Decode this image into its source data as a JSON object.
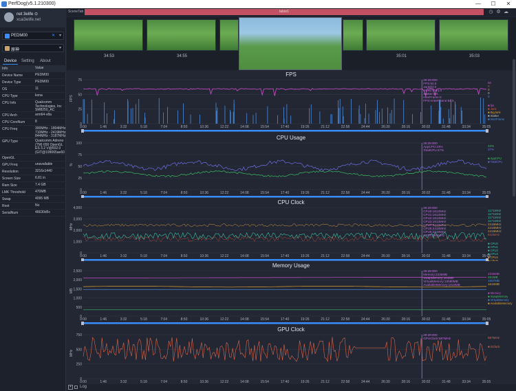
{
  "app": {
    "title": "PerfDog(v5.1.210300)",
    "min": "—",
    "max": "☐",
    "close": "✕"
  },
  "user": {
    "name": "net 3elife ⊙",
    "email": "xcai3elife.net"
  },
  "device_select": {
    "label": "PEDM00",
    "x": "✕"
  },
  "app_select": {
    "label": "原神"
  },
  "tabs": [
    "Device",
    "Setting",
    "About"
  ],
  "info": {
    "header_k": "Info",
    "header_v": "Value",
    "rows": [
      [
        "Device Name",
        "PEDM00"
      ],
      [
        "Device Type",
        "PEDM00"
      ],
      [
        "OS",
        "11"
      ],
      [
        "CPU Type",
        "kona"
      ],
      [
        "CPU Info",
        "Qualcomm Technologies, Inc SM8250_AC"
      ],
      [
        "CPU Arch",
        "arm64-v8a"
      ],
      [
        "CPU CoreNum",
        "8"
      ],
      [
        "CPU Freq",
        "300MHz - 1804MHz 710MHz - 2419MHz 844MHz - 3187MHz"
      ],
      [
        "GPU Type",
        "Qualcomm Adreno (TM) 650 OpenGL ES 3.2 V@502.0 (GIT@199065ae60"
      ],
      [
        "OpenGL",
        ""
      ],
      [
        "GPU Freq",
        "unavailable"
      ],
      [
        "Resolution",
        "3216x1440"
      ],
      [
        "Screen Size",
        "6.81 in"
      ],
      [
        "Ram Size",
        "7.4 GB"
      ],
      [
        "LMK Threshold",
        "470MB"
      ],
      [
        "Swap",
        "4095 MB"
      ],
      [
        "Root",
        "No"
      ],
      [
        "SerialNum",
        "46630d5c"
      ]
    ]
  },
  "scene": {
    "tab": "SceneTab",
    "label": "labor1"
  },
  "thumbs": [
    "34:53",
    "34:55",
    "",
    "35:01",
    "35:03"
  ],
  "x_ticks": [
    "0:00",
    "1:46",
    "3:32",
    "5:18",
    "7:04",
    "8:50",
    "10:36",
    "12:22",
    "14:08",
    "15:54",
    "17:40",
    "19:26",
    "21:12",
    "22:58",
    "24:44",
    "26:30",
    "28:16",
    "30:02",
    "31:48",
    "33:34",
    "35:05"
  ],
  "fps": {
    "title": "FPS",
    "ylabel": "FPS",
    "y_ticks": [
      "75",
      "50",
      "25",
      "0"
    ],
    "tooltip": [
      "29:29:000",
      "FPS:54.5",
      "Jank(k):0",
      "Jank(/10m):0",
      "Stutter:0%",
      "InterFrame:0",
      "FPS>InterFrame:54.5"
    ],
    "legend": [
      {
        "name": "fps",
        "color": "#d04fcf",
        "value": "60"
      },
      {
        "name": "Jank",
        "color": "#d8553a",
        "value": "0"
      },
      {
        "name": "BigJank",
        "color": "#e0a030",
        "value": "0"
      },
      {
        "name": "Stutter",
        "color": "#c0c0c0",
        "value": "0"
      },
      {
        "name": "InterFrame",
        "color": "#4a8de0",
        "value": "0"
      }
    ],
    "legend_extra": [
      "sys",
      "InterFrameTime(ms)",
      "InterFrameThreshold(ms)",
      "InterFrame"
    ]
  },
  "cpu": {
    "title": "CPU Usage",
    "ylabel": "%",
    "y_ticks": [
      "100",
      "75",
      "50",
      "25",
      "0"
    ],
    "tooltip": [
      "29:29:000",
      "AppCPU:23%",
      "TotalCPU:47%"
    ],
    "legend": [
      {
        "name": "AppCPU",
        "color": "#3cc060",
        "value": "24%"
      },
      {
        "name": "TotalCPU",
        "color": "#6f6fe8",
        "value": "37%"
      }
    ]
  },
  "clock": {
    "title": "CPU Clock",
    "ylabel": "MHz",
    "y_ticks": [
      "4,000",
      "3,000",
      "2,000",
      "1,000",
      "0"
    ],
    "tooltip": [
      "29:29:000",
      "CPU0:1613MHz",
      "CPU1:1613MHz",
      "CPU2:1613MHz",
      "CPU3:1613MHz",
      "CPU4:2419MHz",
      "CPU5:2419MHz",
      "CPU6:2419MHz",
      "CPU7:844MHz"
    ],
    "legend": [
      {
        "name": "CPU0",
        "color": "#3cc0a0",
        "value": "1171MHz"
      },
      {
        "name": "CPU1",
        "color": "#3cc0a0",
        "value": "1171MHz"
      },
      {
        "name": "CPU2",
        "color": "#3cc0a0",
        "value": "1171MHz"
      },
      {
        "name": "CPU3",
        "color": "#3cc0a0",
        "value": "1171MHz"
      },
      {
        "name": "CPU4",
        "color": "#e0a040",
        "value": "2419MHz"
      },
      {
        "name": "CPU5",
        "color": "#e0a040",
        "value": "2419MHz"
      },
      {
        "name": "CPU6",
        "color": "#e0a040",
        "value": "2419MHz"
      },
      {
        "name": "CPU7",
        "color": "#d8553a",
        "value": "844MHz"
      }
    ]
  },
  "memory": {
    "title": "Memory Usage",
    "ylabel": "MB",
    "y_ticks": [
      "2,500",
      "2,000",
      "1,500",
      "1,000",
      "500",
      "0"
    ],
    "tooltip": [
      "29:29:000",
      "Memory:2335MB",
      "SwapMemory:344MB",
      "VirtualMemory:10590MB",
      "AvailableMemory:1616MB"
    ],
    "legend": [
      {
        "name": "Memory",
        "color": "#d04fcf",
        "value": "2336MB"
      },
      {
        "name": "SwapMemory",
        "color": "#3cc060",
        "value": "461MB"
      },
      {
        "name": "VirtualMemory",
        "color": "#4a8de0",
        "value": "1557MB"
      },
      {
        "name": "AvailableMemory",
        "color": "#e0a030",
        "value": "1615MB"
      }
    ]
  },
  "gpu": {
    "title": "GPU Clock",
    "ylabel": "MHz",
    "y_ticks": [
      "750",
      "500",
      "250",
      "0"
    ],
    "tooltip": [
      "29:29:000",
      "GPUClock:587MHz"
    ],
    "legend": [
      {
        "name": "GClock",
        "color": "#e0664a",
        "value": "587MHz"
      }
    ]
  },
  "footer": {
    "log": "Log"
  },
  "colors": {
    "accent": "#3a8dff",
    "scene": "#c25164",
    "bg": "#222733"
  }
}
